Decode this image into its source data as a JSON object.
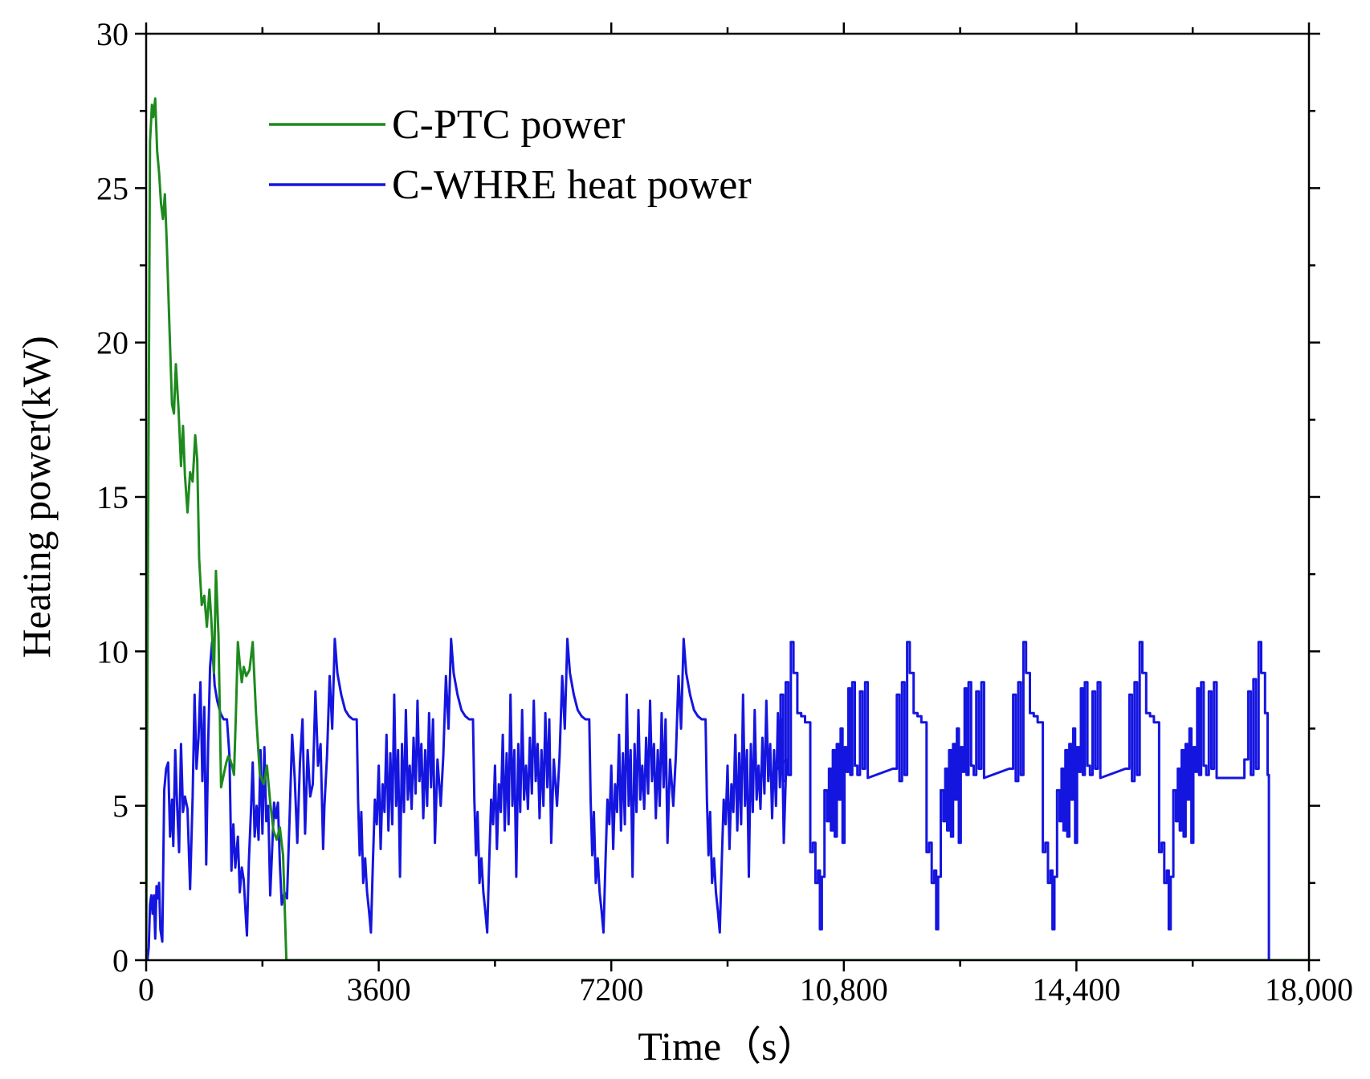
{
  "chart_data": {
    "type": "line",
    "title": "",
    "xlabel": "Time（s）",
    "ylabel": "Heating power(kW)",
    "xlim": [
      0,
      18000
    ],
    "ylim": [
      0,
      30
    ],
    "xticks": [
      0,
      3600,
      7200,
      10800,
      14400,
      18000
    ],
    "xtick_labels": [
      "0",
      "3600",
      "7200",
      "10,800",
      "14,400",
      "18,000"
    ],
    "yticks": [
      0,
      5,
      10,
      15,
      20,
      25,
      30
    ],
    "ytick_labels": [
      "0",
      "5",
      "10",
      "15",
      "20",
      "25",
      "30"
    ],
    "legend_position": "top-left",
    "series": [
      {
        "name": "C-PTC power",
        "color": "#1e8a1e",
        "x": [
          0,
          30,
          60,
          90,
          110,
          140,
          170,
          200,
          230,
          260,
          290,
          320,
          360,
          400,
          430,
          460,
          500,
          540,
          570,
          600,
          640,
          680,
          720,
          760,
          790,
          820,
          860,
          900,
          940,
          980,
          1010,
          1050,
          1080,
          1120,
          1160,
          1200,
          1240,
          1270,
          1300,
          1330,
          1360,
          1390,
          1420,
          1450,
          1480,
          1510,
          1550,
          1600,
          1650,
          1700,
          1760,
          1820,
          1870,
          1920,
          1970,
          2020,
          2070,
          2120,
          2170,
          2220,
          2260,
          2300,
          2350,
          2400,
          2450,
          2500,
          2550,
          2580,
          2590,
          2600,
          2610,
          18000
        ],
        "values": [
          0,
          13.5,
          26.5,
          27.7,
          27.3,
          27.9,
          26.2,
          25.5,
          24.5,
          24.0,
          24.8,
          23.2,
          20.5,
          18.0,
          17.7,
          19.3,
          17.9,
          16.0,
          17.3,
          15.7,
          14.5,
          15.8,
          15.5,
          17.0,
          16.2,
          13.0,
          11.5,
          11.8,
          10.8,
          12.0,
          11.0,
          9.3,
          12.6,
          10.5,
          5.6,
          6.0,
          6.4,
          6.6,
          6.5,
          6.3,
          6.0,
          8.0,
          10.3,
          9.6,
          9.0,
          9.5,
          9.2,
          9.4,
          10.3,
          8.0,
          6.0,
          5.7,
          6.3,
          5.1,
          4.2,
          3.9,
          4.3,
          3.4,
          0,
          0,
          0,
          0,
          0,
          0,
          0,
          0,
          0,
          0,
          0,
          0,
          0,
          0
        ]
      },
      {
        "name": "C-WHRE heat power",
        "color": "#1515e0",
        "x": [],
        "values": []
      }
    ]
  }
}
